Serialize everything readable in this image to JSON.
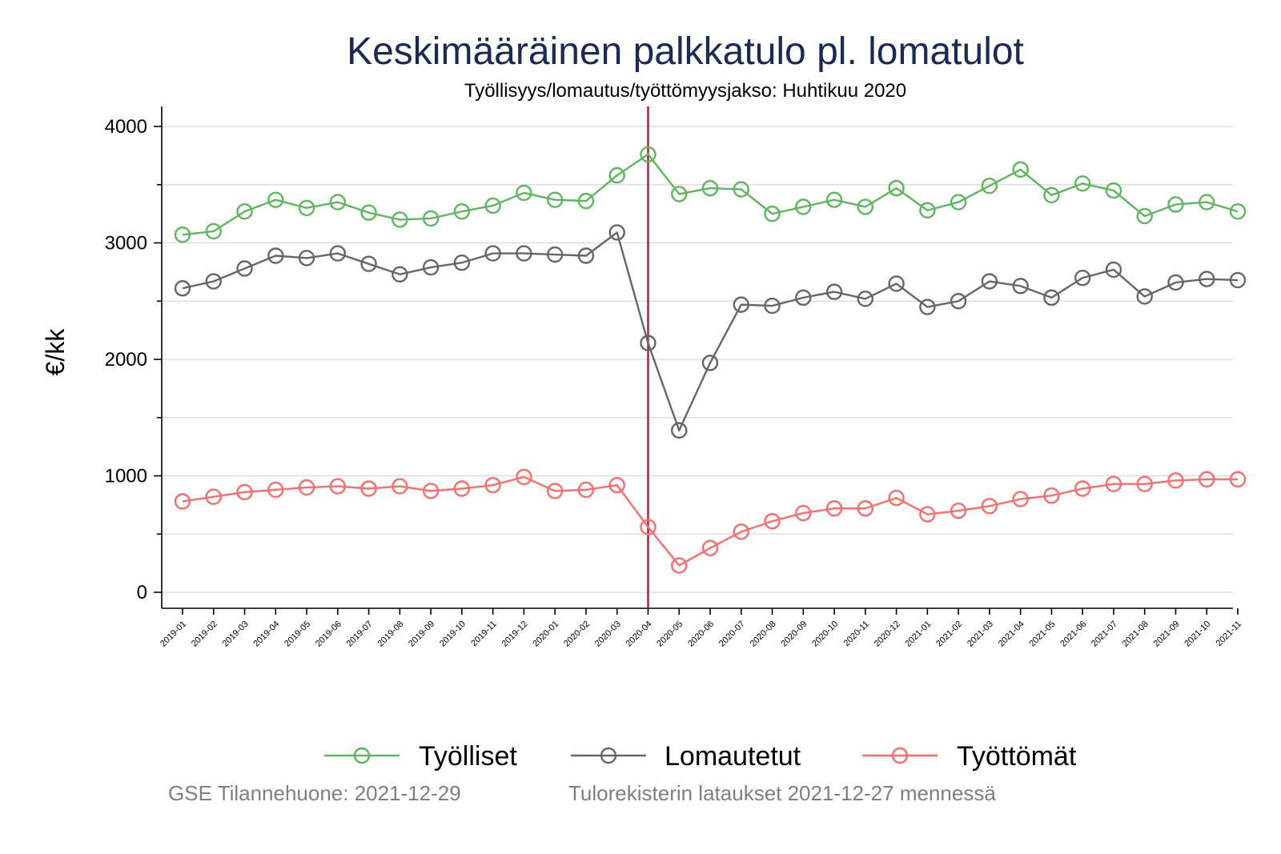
{
  "colors": {
    "title": "#1a2a57",
    "vline": "#b0183a",
    "note": "#7f7f7f"
  },
  "footer": {
    "left": "GSE Tilannehuone: 2021-12-29",
    "right": "Tulorekisterin lataukset 2021-12-27 mennessä"
  },
  "chart_data": {
    "type": "line",
    "title": "Keskimääräinen palkkatulo pl. lomatulot",
    "subtitle": "Työllisyys/lomautus/työttömyysjakso: Huhtikuu 2020",
    "ylabel": "€/kk",
    "xlabel": "",
    "ylim": [
      -150,
      4150
    ],
    "yticks": [
      0,
      1000,
      2000,
      3000,
      4000
    ],
    "yticks_minor": [
      500,
      1500,
      2500,
      3500
    ],
    "grid": true,
    "legend_position": "bottom",
    "vertical_marker": "2020-04",
    "categories": [
      "2019-01",
      "2019-02",
      "2019-03",
      "2019-04",
      "2019-05",
      "2019-06",
      "2019-07",
      "2019-08",
      "2019-09",
      "2019-10",
      "2019-11",
      "2019-12",
      "2020-01",
      "2020-02",
      "2020-03",
      "2020-04",
      "2020-05",
      "2020-06",
      "2020-07",
      "2020-08",
      "2020-09",
      "2020-10",
      "2020-11",
      "2020-12",
      "2021-01",
      "2021-02",
      "2021-03",
      "2021-04",
      "2021-05",
      "2021-06",
      "2021-07",
      "2021-08",
      "2021-09",
      "2021-10",
      "2021-11"
    ],
    "series": [
      {
        "name": "Työlliset",
        "color": "#5cb85c",
        "values": [
          3070,
          3100,
          3270,
          3370,
          3300,
          3350,
          3260,
          3200,
          3210,
          3270,
          3320,
          3430,
          3370,
          3360,
          3580,
          3760,
          3420,
          3470,
          3460,
          3250,
          3310,
          3370,
          3310,
          3470,
          3280,
          3350,
          3490,
          3630,
          3410,
          3510,
          3450,
          3230,
          3330,
          3350,
          3270
        ]
      },
      {
        "name": "Lomautetut",
        "color": "#666666",
        "values": [
          2610,
          2670,
          2780,
          2890,
          2870,
          2910,
          2820,
          2730,
          2790,
          2830,
          2910,
          2910,
          2900,
          2890,
          3090,
          2140,
          1390,
          1970,
          2470,
          2460,
          2530,
          2580,
          2520,
          2650,
          2450,
          2500,
          2670,
          2630,
          2530,
          2700,
          2770,
          2540,
          2660,
          2690,
          2680
        ]
      },
      {
        "name": "Työttömät",
        "color": "#ff6b6b",
        "values": [
          780,
          820,
          860,
          880,
          900,
          910,
          890,
          910,
          870,
          890,
          920,
          990,
          870,
          880,
          920,
          560,
          230,
          380,
          520,
          610,
          680,
          720,
          720,
          810,
          670,
          700,
          740,
          800,
          830,
          890,
          930,
          930,
          960,
          970,
          970
        ]
      }
    ]
  }
}
